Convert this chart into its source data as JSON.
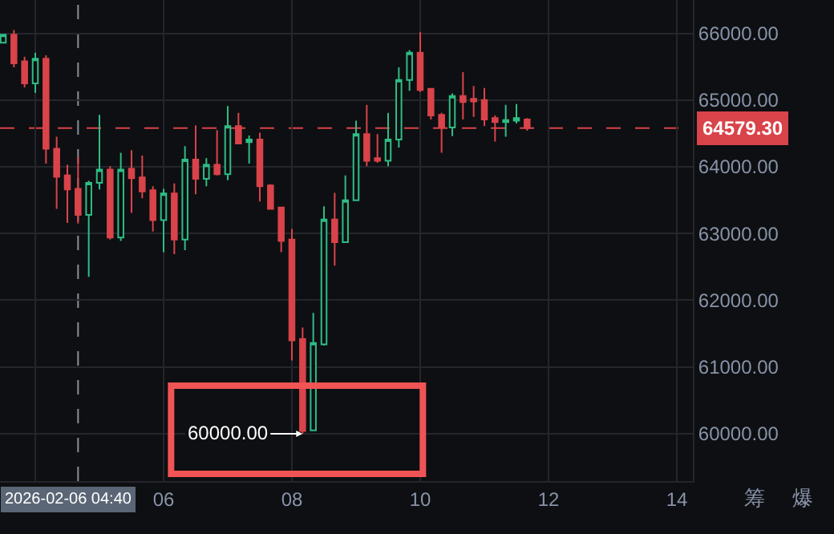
{
  "chart_data": {
    "type": "candlestick",
    "x": [
      "2026-02-06T03:30",
      "2026-02-06T03:40",
      "2026-02-06T03:50",
      "2026-02-06T04:00",
      "2026-02-06T04:10",
      "2026-02-06T04:20",
      "2026-02-06T04:30",
      "2026-02-06T04:40",
      "2026-02-06T04:50",
      "2026-02-06T05:00",
      "2026-02-06T05:10",
      "2026-02-06T05:20",
      "2026-02-06T05:30",
      "2026-02-06T05:40",
      "2026-02-06T05:50",
      "2026-02-06T06:00",
      "2026-02-06T06:10",
      "2026-02-06T06:20",
      "2026-02-06T06:30",
      "2026-02-06T06:40",
      "2026-02-06T06:50",
      "2026-02-06T07:00",
      "2026-02-06T07:10",
      "2026-02-06T07:20",
      "2026-02-06T07:30",
      "2026-02-06T07:40",
      "2026-02-06T07:50",
      "2026-02-06T08:00",
      "2026-02-06T08:10",
      "2026-02-06T08:20",
      "2026-02-06T08:30",
      "2026-02-06T08:40",
      "2026-02-06T08:50",
      "2026-02-06T09:00",
      "2026-02-06T09:10",
      "2026-02-06T09:20",
      "2026-02-06T09:30",
      "2026-02-06T09:40",
      "2026-02-06T09:50",
      "2026-02-06T10:00",
      "2026-02-06T10:10",
      "2026-02-06T10:20",
      "2026-02-06T10:30",
      "2026-02-06T10:40",
      "2026-02-06T10:50",
      "2026-02-06T11:00",
      "2026-02-06T11:10",
      "2026-02-06T11:20",
      "2026-02-06T11:30",
      "2026-02-06T11:40"
    ],
    "ohlc": [
      [
        65860,
        65990,
        65850,
        65980
      ],
      [
        65980,
        66050,
        65490,
        65550
      ],
      [
        65580,
        65650,
        65190,
        65250
      ],
      [
        65250,
        65710,
        65110,
        65620
      ],
      [
        65620,
        65670,
        64050,
        64270
      ],
      [
        64270,
        64450,
        63370,
        63850
      ],
      [
        63870,
        64030,
        63160,
        63660
      ],
      [
        63670,
        64150,
        63150,
        63280
      ],
      [
        63280,
        63790,
        62350,
        63760
      ],
      [
        63760,
        64780,
        63660,
        63960
      ],
      [
        63960,
        64010,
        62910,
        62940
      ],
      [
        62940,
        64210,
        62890,
        63960
      ],
      [
        63970,
        64250,
        63310,
        63830
      ],
      [
        63840,
        64170,
        63530,
        63630
      ],
      [
        63650,
        63710,
        63030,
        63200
      ],
      [
        63200,
        63670,
        62720,
        63600
      ],
      [
        63600,
        63750,
        62690,
        62910
      ],
      [
        62910,
        64310,
        62750,
        64110
      ],
      [
        64110,
        64620,
        63590,
        63820
      ],
      [
        63820,
        64130,
        63710,
        64030
      ],
      [
        64030,
        64550,
        63870,
        63890
      ],
      [
        63890,
        64910,
        63800,
        64610
      ],
      [
        64610,
        64810,
        64350,
        64350
      ],
      [
        64370,
        64470,
        64050,
        64410
      ],
      [
        64410,
        64510,
        63480,
        63710
      ],
      [
        63720,
        63740,
        63370,
        63370
      ],
      [
        63390,
        63400,
        62720,
        62890
      ],
      [
        62910,
        63070,
        61100,
        61400
      ],
      [
        61420,
        61590,
        60000,
        60040
      ],
      [
        60050,
        61810,
        60050,
        61360
      ],
      [
        61340,
        63410,
        61320,
        63210
      ],
      [
        63210,
        63610,
        62520,
        62870
      ],
      [
        62870,
        63870,
        62870,
        63500
      ],
      [
        63500,
        64690,
        63500,
        64490
      ],
      [
        64490,
        64930,
        64010,
        64090
      ],
      [
        64130,
        64490,
        64060,
        64090
      ],
      [
        64090,
        64810,
        64010,
        64410
      ],
      [
        64410,
        65490,
        64290,
        65300
      ],
      [
        65300,
        65750,
        65140,
        65710
      ],
      [
        65710,
        66020,
        65120,
        65150
      ],
      [
        65170,
        65170,
        64710,
        64770
      ],
      [
        64780,
        64810,
        64210,
        64590
      ],
      [
        64590,
        65100,
        64460,
        65060
      ],
      [
        65060,
        65420,
        64710,
        64970
      ],
      [
        65020,
        65210,
        64750,
        64980
      ],
      [
        65000,
        65180,
        64610,
        64710
      ],
      [
        64730,
        64770,
        64380,
        64670
      ],
      [
        64670,
        64930,
        64450,
        64700
      ],
      [
        64690,
        64940,
        64650,
        64730
      ],
      [
        64710,
        64730,
        64540,
        64579.3
      ]
    ],
    "colors": [
      "#2ebd85",
      "#d9434a",
      "#d9434a",
      "#2ebd85",
      "#d9434a",
      "#d9434a",
      "#d9434a",
      "#d9434a",
      "#2ebd85",
      "#2ebd85",
      "#d9434a",
      "#2ebd85",
      "#d9434a",
      "#d9434a",
      "#d9434a",
      "#2ebd85",
      "#d9434a",
      "#2ebd85",
      "#d9434a",
      "#2ebd85",
      "#d9434a",
      "#2ebd85",
      "#d9434a",
      "#2ebd85",
      "#d9434a",
      "#d9434a",
      "#d9434a",
      "#d9434a",
      "#d9434a",
      "#2ebd85",
      "#2ebd85",
      "#d9434a",
      "#2ebd85",
      "#2ebd85",
      "#d9434a",
      "#d9434a",
      "#2ebd85",
      "#2ebd85",
      "#2ebd85",
      "#d9434a",
      "#d9434a",
      "#d9434a",
      "#2ebd85",
      "#d9434a",
      "#d9434a",
      "#d9434a",
      "#d9434a",
      "#2ebd85",
      "#2ebd85",
      "#d9434a"
    ],
    "xlim": [
      "2026-02-06T03:27",
      "2026-02-06T14:15"
    ],
    "xticks": [
      {
        "value": "2026-02-06T04:00",
        "label": null
      },
      {
        "value": "2026-02-06T06:00",
        "label": "06"
      },
      {
        "value": "2026-02-06T08:00",
        "label": "08"
      },
      {
        "value": "2026-02-06T10:00",
        "label": "10"
      },
      {
        "value": "2026-02-06T12:00",
        "label": "12"
      },
      {
        "value": "2026-02-06T14:00",
        "label": "14"
      }
    ],
    "ylim": [
      59290,
      66500
    ],
    "yticks": [
      {
        "value": 60000,
        "label": "60000.00"
      },
      {
        "value": 61000,
        "label": "61000.00"
      },
      {
        "value": 62000,
        "label": "62000.00"
      },
      {
        "value": 63000,
        "label": "63000.00"
      },
      {
        "value": 64000,
        "label": "64000.00"
      },
      {
        "value": 65000,
        "label": "65000.00"
      },
      {
        "value": 66000,
        "label": "66000.00"
      }
    ],
    "grid": true,
    "ref_lines": [
      {
        "axis": "y",
        "value": 64579.3,
        "label": "64579.30",
        "color": "#d9434a",
        "line_style": "dashed"
      },
      {
        "axis": "x",
        "value": "2026-02-06T04:40",
        "label": "2026-02-06 04:40",
        "color": "#8a8f98",
        "line_style": "dashed"
      }
    ],
    "annotations": [
      {
        "text": "60000.00",
        "x": "2026-02-06T08:10",
        "y": 60000
      },
      "筹",
      "爆"
    ]
  }
}
